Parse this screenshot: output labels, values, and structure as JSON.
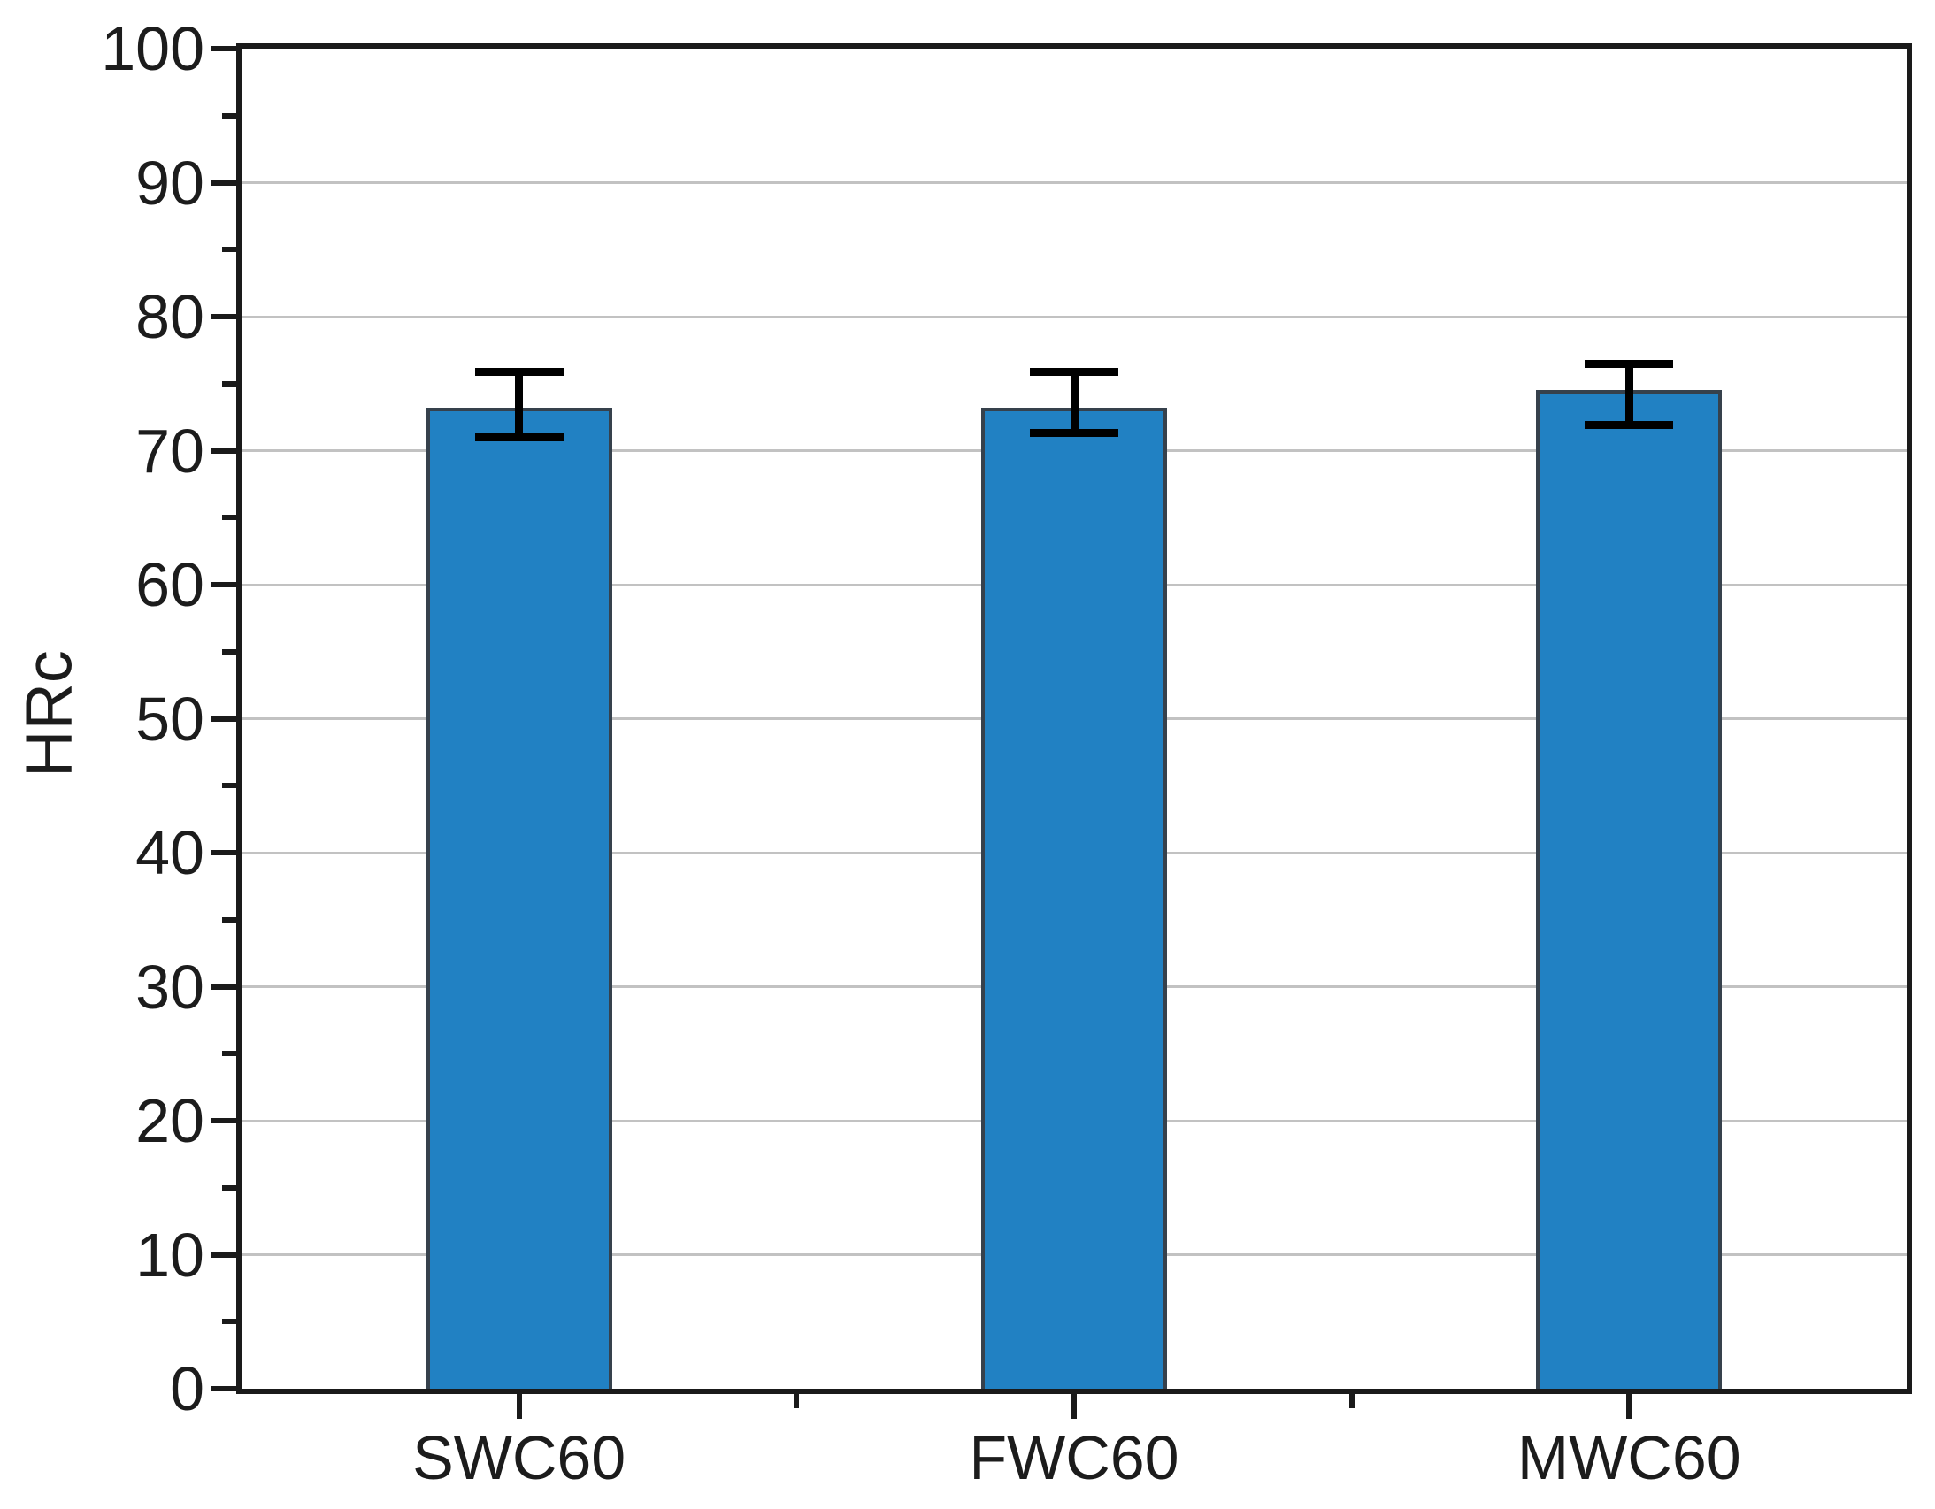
{
  "chart_data": {
    "type": "bar",
    "title": "",
    "xlabel": "",
    "ylabel": "HRc",
    "categories": [
      "SWC60",
      "FWC60",
      "MWC60"
    ],
    "values": [
      73.2,
      73.2,
      74.5
    ],
    "errors": [
      {
        "cap_top": 75.9,
        "cap_bottom": 71.0
      },
      {
        "cap_top": 75.9,
        "cap_bottom": 71.3
      },
      {
        "cap_top": 76.5,
        "cap_bottom": 71.9
      }
    ],
    "ylim": [
      0,
      100
    ],
    "ytick_step": 10,
    "yminor_step": 5,
    "grid": true,
    "legend_position": "none",
    "colors": {
      "bar_fill": "#2181c3",
      "bar_border": "#36414c",
      "grid": "#c2c2c2",
      "axis": "#1a1a1a",
      "error_bar": "#000000",
      "text": "#1c1c1c",
      "background": "#ffffff"
    }
  }
}
